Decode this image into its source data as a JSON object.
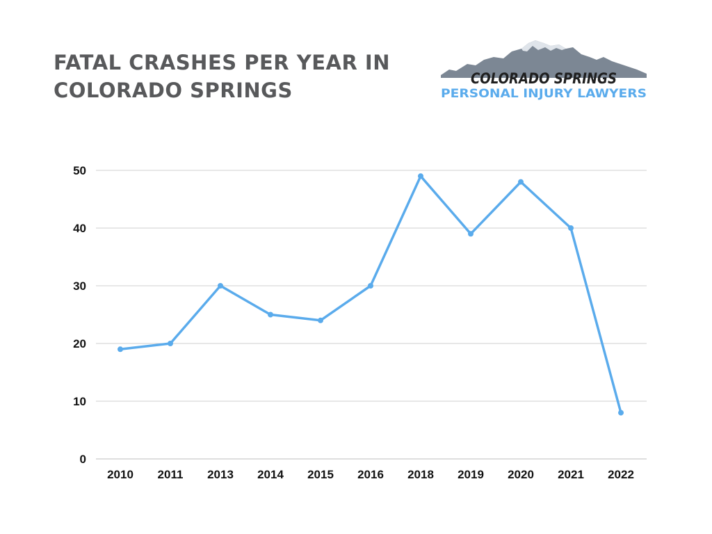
{
  "title": {
    "line1": "FATAL CRASHES PER YEAR IN",
    "line2": "COLORADO SPRINGS"
  },
  "logo": {
    "line1": "COLORADO SPRINGS",
    "line2": "PERSONAL INJURY LAWYERS"
  },
  "colors": {
    "title": "#58595b",
    "line": "#5aabec",
    "grid": "#cfcfcf",
    "tick": "#111111",
    "logo_dark": "#1f1f1f",
    "logo_blue": "#5aabec",
    "mountain": "#7c8794"
  },
  "chart_data": {
    "type": "line",
    "title": "FATAL CRASHES PER YEAR IN COLORADO SPRINGS",
    "categories": [
      "2010",
      "2011",
      "2013",
      "2014",
      "2015",
      "2016",
      "2018",
      "2019",
      "2020",
      "2021",
      "2022"
    ],
    "series": [
      {
        "values": [
          19,
          20,
          30,
          25,
          24,
          30,
          49,
          39,
          48,
          40,
          8
        ]
      }
    ],
    "yticks": [
      0,
      10,
      20,
      30,
      40,
      50
    ],
    "ylim": [
      0,
      50
    ],
    "grid": true,
    "xlabel": "",
    "ylabel": ""
  }
}
